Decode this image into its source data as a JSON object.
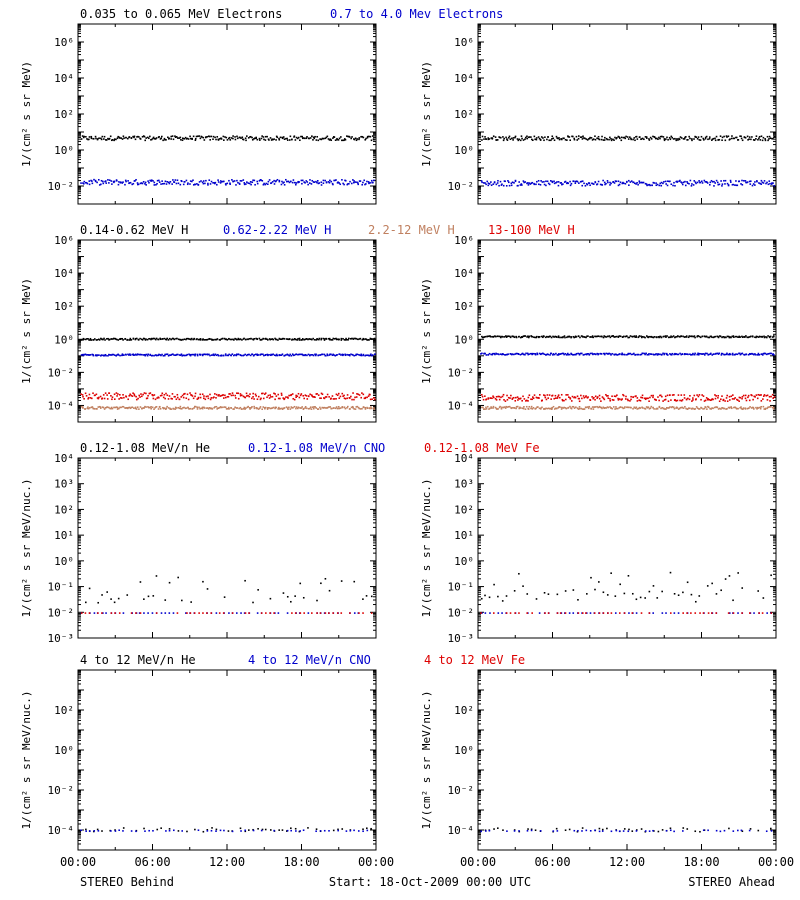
{
  "chart_data": [
    {
      "type": "scatter",
      "panel": "electrons",
      "ylabel": "1/(cm² s sr MeV)",
      "ylim_exp": [
        -3,
        7
      ],
      "yscale": "log",
      "ytick_exps": [
        -2,
        0,
        2,
        4,
        6
      ],
      "ytick_labels": [
        "10⁻²",
        "10⁰",
        "10²",
        "10⁴",
        "10⁶"
      ],
      "legend": [
        {
          "name": "0.035 to 0.065 MeV Electrons",
          "color": "#000000"
        },
        {
          "name": "0.7 to 4.0 Mev Electrons",
          "color": "#0000cc"
        }
      ],
      "series_behind": [
        {
          "name": "0.035 to 0.065 MeV Electrons",
          "color": "#000000",
          "level_exp": 0.7,
          "spread": 0.12
        },
        {
          "name": "0.7 to 4.0 Mev Electrons",
          "color": "#0000cc",
          "level_exp": -1.75,
          "spread": 0.15
        }
      ],
      "series_ahead": [
        {
          "name": "0.035 to 0.065 MeV Electrons",
          "color": "#000000",
          "level_exp": 0.7,
          "spread": 0.12
        },
        {
          "name": "0.7 to 4.0 Mev Electrons",
          "color": "#0000cc",
          "level_exp": -1.8,
          "spread": 0.15
        }
      ]
    },
    {
      "type": "scatter",
      "panel": "protons",
      "ylabel": "1/(cm² s sr MeV)",
      "ylim_exp": [
        -5,
        6
      ],
      "yscale": "log",
      "ytick_exps": [
        -4,
        -2,
        0,
        2,
        4,
        6
      ],
      "ytick_labels": [
        "10⁻⁴",
        "10⁻²",
        "10⁰",
        "10²",
        "10⁴",
        "10⁶"
      ],
      "legend": [
        {
          "name": "0.14-0.62 MeV H",
          "color": "#000000"
        },
        {
          "name": "0.62-2.22 MeV H",
          "color": "#0000cc"
        },
        {
          "name": "2.2-12 MeV H",
          "color": "#c08060"
        },
        {
          "name": "13-100 MeV H",
          "color": "#dd0000"
        }
      ],
      "series_behind": [
        {
          "name": "0.14-0.62 MeV H",
          "color": "#000000",
          "level_exp": 0.05,
          "spread": 0.05
        },
        {
          "name": "0.62-2.22 MeV H",
          "color": "#0000cc",
          "level_exp": -0.9,
          "spread": 0.05
        },
        {
          "name": "13-100 MeV H",
          "color": "#dd0000",
          "level_exp": -3.4,
          "spread": 0.2
        },
        {
          "name": "2.2-12 MeV H",
          "color": "#c08060",
          "level_exp": -4.1,
          "spread": 0.08
        }
      ],
      "series_ahead": [
        {
          "name": "0.14-0.62 MeV H",
          "color": "#000000",
          "level_exp": 0.2,
          "spread": 0.05
        },
        {
          "name": "0.62-2.22 MeV H",
          "color": "#0000cc",
          "level_exp": -0.85,
          "spread": 0.05
        },
        {
          "name": "13-100 MeV H",
          "color": "#dd0000",
          "level_exp": -3.5,
          "spread": 0.2
        },
        {
          "name": "2.2-12 MeV H",
          "color": "#c08060",
          "level_exp": -4.1,
          "spread": 0.08
        }
      ]
    },
    {
      "type": "scatter",
      "panel": "heavy-low",
      "ylabel": "1/(cm² s sr MeV/nuc.)",
      "ylim_exp": [
        -3,
        4
      ],
      "yscale": "log",
      "ytick_exps": [
        -3,
        -2,
        -1,
        0,
        1,
        2,
        3,
        4
      ],
      "ytick_labels": [
        "10⁻³",
        "10⁻²",
        "10⁻¹",
        "10⁰",
        "10¹",
        "10²",
        "10³",
        "10⁴"
      ],
      "legend": [
        {
          "name": "0.12-1.08 MeV/n He",
          "color": "#000000"
        },
        {
          "name": "0.12-1.08 MeV/n CNO",
          "color": "#0000cc"
        },
        {
          "name": "0.12-1.08 MeV Fe",
          "color": "#dd0000"
        }
      ],
      "series_behind": [
        {
          "name": "0.12-1.08 MeV/n He",
          "color": "#000000",
          "level_exp": -1.3,
          "spread": 0.3
        },
        {
          "name": "0.12-1.08 MeV/n CNO",
          "color": "#0000cc",
          "level_exp": -2.0,
          "spread": 0.0
        },
        {
          "name": "0.12-1.08 MeV Fe",
          "color": "#dd0000",
          "level_exp": -2.0,
          "spread": 0.0
        }
      ],
      "series_ahead": [
        {
          "name": "0.12-1.08 MeV/n He",
          "color": "#000000",
          "level_exp": -1.2,
          "spread": 0.4
        },
        {
          "name": "0.12-1.08 MeV/n CNO",
          "color": "#0000cc",
          "level_exp": -2.0,
          "spread": 0.0
        },
        {
          "name": "0.12-1.08 MeV Fe",
          "color": "#dd0000",
          "level_exp": -2.0,
          "spread": 0.0
        }
      ]
    },
    {
      "type": "scatter",
      "panel": "heavy-high",
      "ylabel": "1/(cm² s sr MeV/nuc.)",
      "ylim_exp": [
        -5,
        4
      ],
      "yscale": "log",
      "ytick_exps": [
        -4,
        -2,
        0,
        2
      ],
      "ytick_labels": [
        "10⁻⁴",
        "10⁻²",
        "10⁰",
        "10²"
      ],
      "legend": [
        {
          "name": "4 to 12 MeV/n He",
          "color": "#000000"
        },
        {
          "name": "4 to 12 MeV/n CNO",
          "color": "#0000cc"
        },
        {
          "name": "4 to 12 MeV Fe",
          "color": "#dd0000"
        }
      ],
      "series_behind": [
        {
          "name": "4 to 12 MeV/n He",
          "color": "#000000",
          "level_exp": -3.95,
          "spread": 0.1
        },
        {
          "name": "4 to 12 MeV/n CNO",
          "color": "#0000cc",
          "level_exp": -4.0,
          "spread": 0.03
        }
      ],
      "series_ahead": [
        {
          "name": "4 to 12 MeV/n He",
          "color": "#000000",
          "level_exp": -3.95,
          "spread": 0.1
        },
        {
          "name": "4 to 12 MeV/n CNO",
          "color": "#0000cc",
          "level_exp": -4.0,
          "spread": 0.03
        }
      ]
    }
  ],
  "xaxis": {
    "tick_labels": [
      "00:00",
      "06:00",
      "12:00",
      "18:00",
      "00:00"
    ]
  },
  "footer": {
    "left": "STEREO Behind",
    "center": "Start: 18-Oct-2009 00:00 UTC",
    "right": "STEREO Ahead"
  }
}
